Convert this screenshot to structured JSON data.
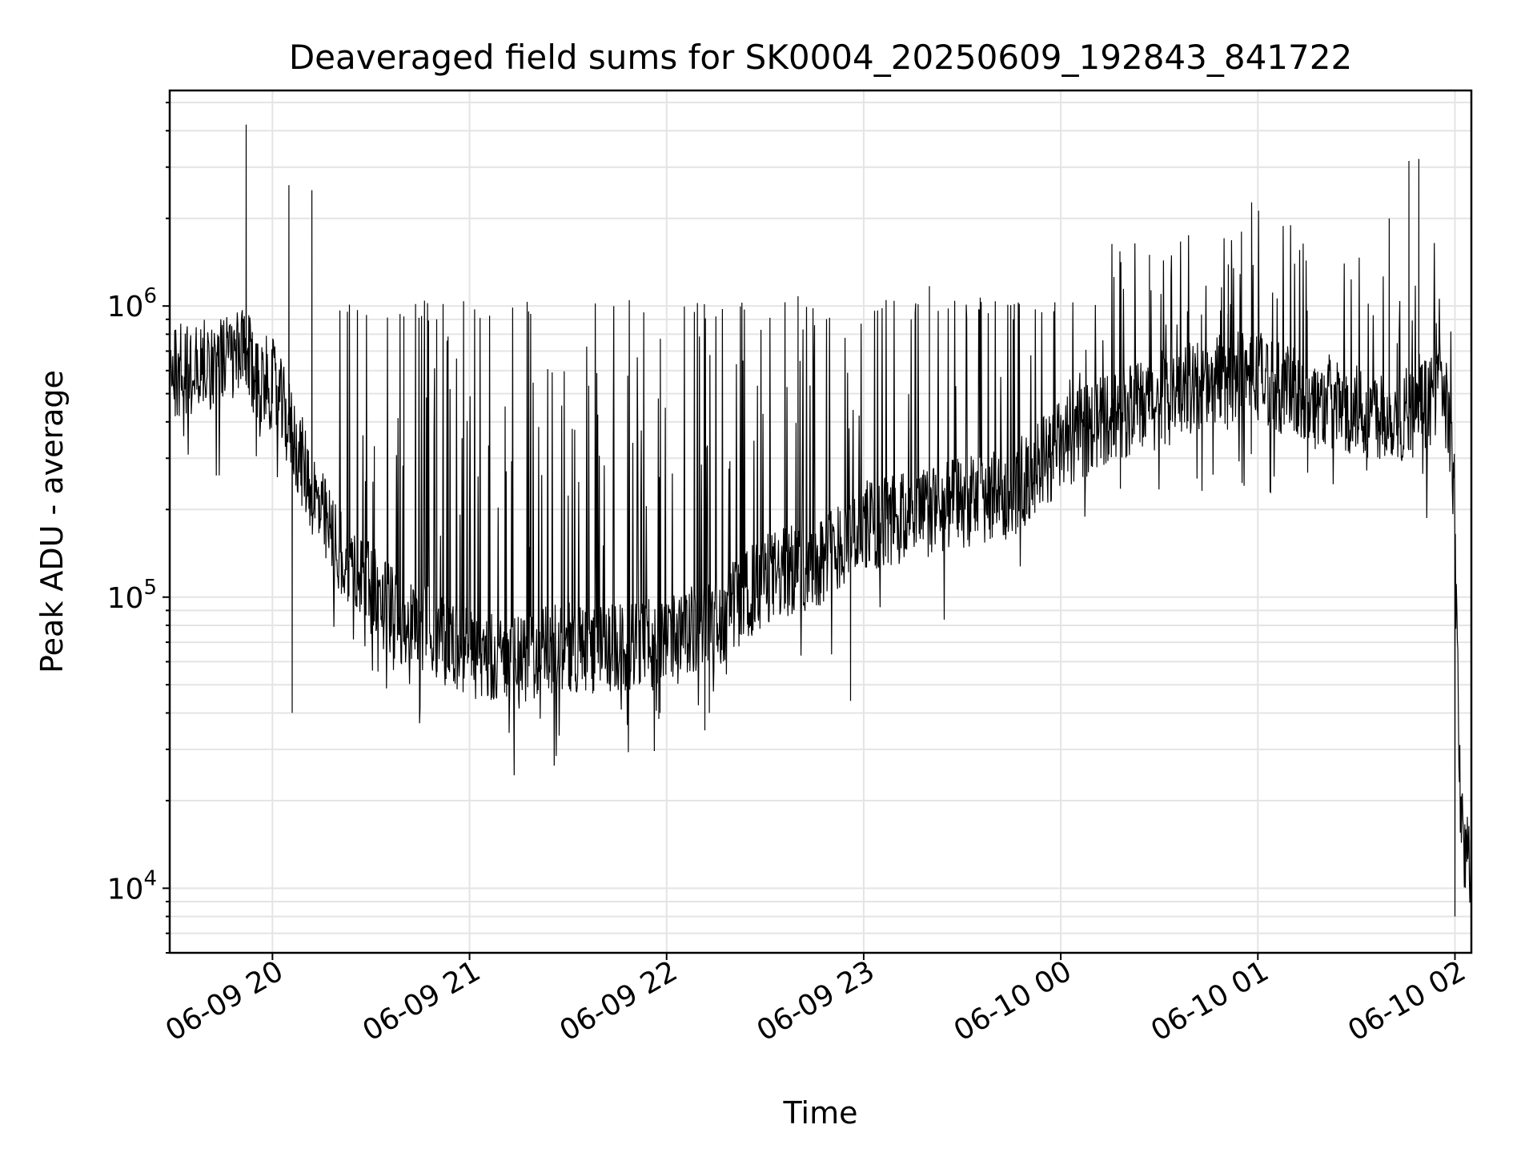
{
  "chart_data": {
    "type": "line",
    "title": "Deaveraged field sums for SK0004_20250609_192843_841722",
    "xlabel": "Time",
    "ylabel": "Peak ADU - average",
    "yscale": "log",
    "ylim": [
      6000,
      5500000
    ],
    "xlim": [
      "2025-06-09 19:28:43",
      "2025-06-10 02:05:00"
    ],
    "grid": true,
    "x_ticks": [
      "2025-06-09 20:00",
      "2025-06-09 21:00",
      "2025-06-09 22:00",
      "2025-06-09 23:00",
      "2025-06-10 00:00",
      "2025-06-10 01:00",
      "2025-06-10 02:00"
    ],
    "x_tick_labels": [
      "06-09 20",
      "06-09 21",
      "06-09 22",
      "06-09 23",
      "06-10 00",
      "06-10 01",
      "06-10 02"
    ],
    "y_ticks": [
      10000,
      100000,
      1000000
    ],
    "y_tick_labels": [
      {
        "base": "10",
        "exp": "4"
      },
      {
        "base": "10",
        "exp": "5"
      },
      {
        "base": "10",
        "exp": "6"
      }
    ],
    "series": [
      {
        "color": "#000000",
        "baseline": [
          [
            "2025-06-09 19:28:43",
            600000
          ],
          [
            "2025-06-09 19:35",
            610000
          ],
          [
            "2025-06-09 19:45",
            650000
          ],
          [
            "2025-06-09 19:52",
            680000
          ],
          [
            "2025-06-09 19:55",
            560000
          ],
          [
            "2025-06-09 20:00",
            540000
          ],
          [
            "2025-06-09 20:05",
            390000
          ],
          [
            "2025-06-09 20:10",
            270000
          ],
          [
            "2025-06-09 20:15",
            190000
          ],
          [
            "2025-06-09 20:20",
            145000
          ],
          [
            "2025-06-09 20:30",
            105000
          ],
          [
            "2025-06-09 20:40",
            82000
          ],
          [
            "2025-06-09 21:00",
            65000
          ],
          [
            "2025-06-09 21:15",
            60000
          ],
          [
            "2025-06-09 21:30",
            68000
          ],
          [
            "2025-06-09 21:45",
            66000
          ],
          [
            "2025-06-09 22:00",
            70000
          ],
          [
            "2025-06-09 22:15",
            82000
          ],
          [
            "2025-06-09 22:30",
            115000
          ],
          [
            "2025-06-09 22:45",
            130000
          ],
          [
            "2025-06-09 23:00",
            175000
          ],
          [
            "2025-06-09 23:15",
            190000
          ],
          [
            "2025-06-09 23:30",
            210000
          ],
          [
            "2025-06-09 23:45",
            230000
          ],
          [
            "2025-06-10 00:00",
            330000
          ],
          [
            "2025-06-10 00:15",
            420000
          ],
          [
            "2025-06-10 00:30",
            460000
          ],
          [
            "2025-06-10 00:45",
            560000
          ],
          [
            "2025-06-10 01:00",
            580000
          ],
          [
            "2025-06-10 01:15",
            470000
          ],
          [
            "2025-06-10 01:30",
            440000
          ],
          [
            "2025-06-10 01:45",
            420000
          ],
          [
            "2025-06-10 01:53",
            480000
          ],
          [
            "2025-06-10 01:55",
            780000
          ],
          [
            "2025-06-10 01:57",
            480000
          ],
          [
            "2025-06-10 01:59",
            320000
          ],
          [
            "2025-06-10 02:00",
            160000
          ],
          [
            "2025-06-10 02:01",
            40000
          ],
          [
            "2025-06-10 02:02",
            16000
          ],
          [
            "2025-06-10 02:03",
            14000
          ],
          [
            "2025-06-10 02:05",
            11000
          ]
        ],
        "spikes": [
          [
            "2025-06-09 19:52",
            4200000
          ],
          [
            "2025-06-09 20:05",
            2600000
          ],
          [
            "2025-06-09 20:06",
            40000
          ],
          [
            "2025-06-09 20:12",
            2500000
          ],
          [
            "2025-06-09 20:31",
            330000
          ],
          [
            "2025-06-09 20:40",
            920000
          ],
          [
            "2025-06-09 20:50",
            900000
          ],
          [
            "2025-06-09 21:58",
            40000
          ],
          [
            "2025-06-09 22:13",
            40000
          ],
          [
            "2025-06-09 22:40",
            1080000
          ],
          [
            "2025-06-09 22:56",
            44000
          ],
          [
            "2025-06-09 23:20",
            1170000
          ],
          [
            "2025-06-10 00:27",
            1500000
          ],
          [
            "2025-06-10 00:51",
            1390000
          ],
          [
            "2025-06-10 00:55",
            1800000
          ],
          [
            "2025-06-10 00:58",
            310000
          ],
          [
            "2025-06-10 01:40",
            2000000
          ],
          [
            "2025-06-10 01:46",
            3150000
          ],
          [
            "2025-06-10 01:49",
            3200000
          ],
          [
            "2025-06-10 02:00",
            8000
          ]
        ]
      }
    ]
  }
}
